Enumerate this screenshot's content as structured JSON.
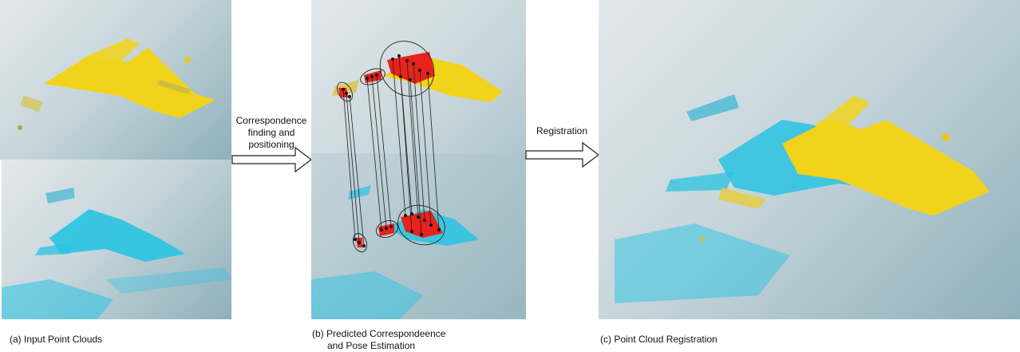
{
  "arrows": {
    "first_label_lines": [
      "Correspondence",
      "finding and",
      "positioning"
    ],
    "second_label": "Registration"
  },
  "captions": {
    "a": "(a) Input Point Clouds",
    "b_line1": "(b) Predicted Correspondeence",
    "b_line2": "and Pose Estimation",
    "c": "(c) Point Cloud Registration"
  },
  "colors": {
    "source_cloud": "#f2d31b",
    "target_cloud": "#29c3e2",
    "correspondence": "#e8221c",
    "background_light": "#e3e8ea",
    "background_dark": "#8fb0bb"
  }
}
